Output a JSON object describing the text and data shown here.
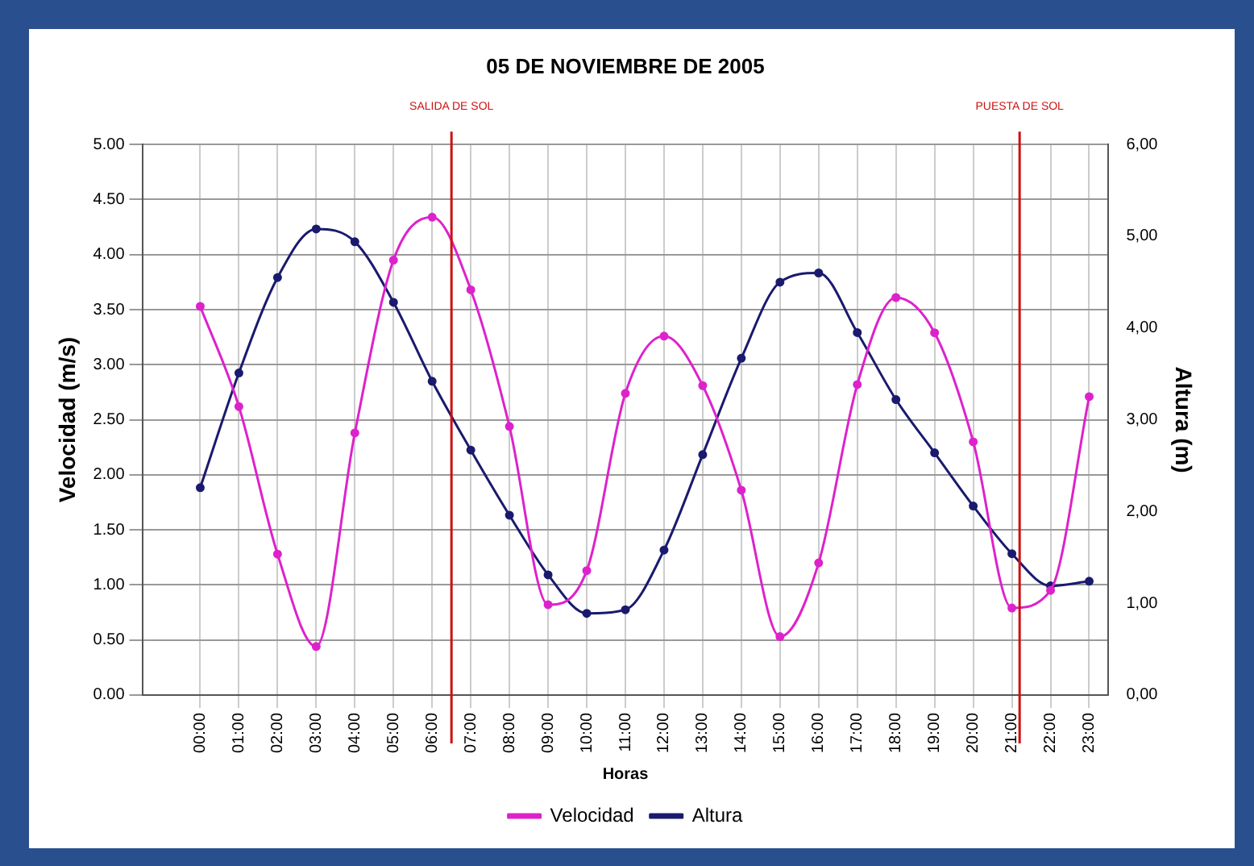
{
  "chart_data": {
    "type": "line",
    "title": "05 DE NOVIEMBRE DE 2005",
    "xlabel": "Horas",
    "ylabel": "Velocidad (m/s)",
    "y2label": "Altura (m)",
    "x": [
      0,
      1,
      2,
      3,
      4,
      5,
      6,
      7,
      8,
      9,
      10,
      11,
      12,
      13,
      14,
      15,
      16,
      17,
      18,
      19,
      20,
      21,
      22,
      23
    ],
    "xlim": [
      -1.5,
      23.5
    ],
    "xticks": [
      {
        "value": 0,
        "label": "00:00"
      },
      {
        "value": 1,
        "label": "01:00"
      },
      {
        "value": 2,
        "label": "02:00"
      },
      {
        "value": 3,
        "label": "03:00"
      },
      {
        "value": 4,
        "label": "04:00"
      },
      {
        "value": 5,
        "label": "05:00"
      },
      {
        "value": 6,
        "label": "06:00"
      },
      {
        "value": 7,
        "label": "07:00"
      },
      {
        "value": 8,
        "label": "08:00"
      },
      {
        "value": 9,
        "label": "09:00"
      },
      {
        "value": 10,
        "label": "10:00"
      },
      {
        "value": 11,
        "label": "11:00"
      },
      {
        "value": 12,
        "label": "12:00"
      },
      {
        "value": 13,
        "label": "13:00"
      },
      {
        "value": 14,
        "label": "14:00"
      },
      {
        "value": 15,
        "label": "15:00"
      },
      {
        "value": 16,
        "label": "16:00"
      },
      {
        "value": 17,
        "label": "17:00"
      },
      {
        "value": 18,
        "label": "18:00"
      },
      {
        "value": 19,
        "label": "19:00"
      },
      {
        "value": 20,
        "label": "20:00"
      },
      {
        "value": 21,
        "label": "21:00"
      },
      {
        "value": 22,
        "label": "22:00"
      },
      {
        "value": 23,
        "label": "23:00"
      }
    ],
    "ylim": [
      0,
      5
    ],
    "yticks": [
      {
        "value": 0,
        "label": "0.00"
      },
      {
        "value": 0.5,
        "label": "0.50"
      },
      {
        "value": 1,
        "label": "1.00"
      },
      {
        "value": 1.5,
        "label": "1.50"
      },
      {
        "value": 2,
        "label": "2.00"
      },
      {
        "value": 2.5,
        "label": "2.50"
      },
      {
        "value": 3,
        "label": "3.00"
      },
      {
        "value": 3.5,
        "label": "3.50"
      },
      {
        "value": 4,
        "label": "4.00"
      },
      {
        "value": 4.5,
        "label": "4.50"
      },
      {
        "value": 5,
        "label": "5.00"
      }
    ],
    "y2lim": [
      0,
      6
    ],
    "y2ticks": [
      {
        "value": 0,
        "label": "0,00"
      },
      {
        "value": 1,
        "label": "1,00"
      },
      {
        "value": 2,
        "label": "2,00"
      },
      {
        "value": 3,
        "label": "3,00"
      },
      {
        "value": 4,
        "label": "4,00"
      },
      {
        "value": 5,
        "label": "5,00"
      },
      {
        "value": 6,
        "label": "6,00"
      }
    ],
    "series": [
      {
        "name": "Velocidad",
        "color": "#dd22cc",
        "values": [
          3.53,
          2.62,
          1.28,
          0.44,
          2.38,
          3.95,
          4.34,
          3.68,
          2.44,
          0.82,
          1.13,
          2.74,
          3.26,
          2.81,
          1.86,
          0.53,
          1.2,
          2.82,
          3.61,
          3.29,
          2.3,
          0.79,
          0.95,
          2.71
        ]
      },
      {
        "name": "Altura",
        "color": "#1a1a6e",
        "axis": "y2",
        "values": [
          2.26,
          3.51,
          4.55,
          5.08,
          4.94,
          4.28,
          3.42,
          2.67,
          1.96,
          1.31,
          0.89,
          0.93,
          1.58,
          2.62,
          3.67,
          4.5,
          4.6,
          3.95,
          3.22,
          2.64,
          2.06,
          1.54,
          1.19,
          1.24
        ]
      }
    ],
    "ref_lines": [
      {
        "axis": "x",
        "value": 6.5,
        "label": "SALIDA DE SOL",
        "color": "#cc1111"
      },
      {
        "axis": "x",
        "value": 21.2,
        "label": "PUESTA DE SOL",
        "color": "#cc1111"
      }
    ],
    "grid": true,
    "legend": "bottom",
    "marker": "circle",
    "line_style": "solid"
  }
}
